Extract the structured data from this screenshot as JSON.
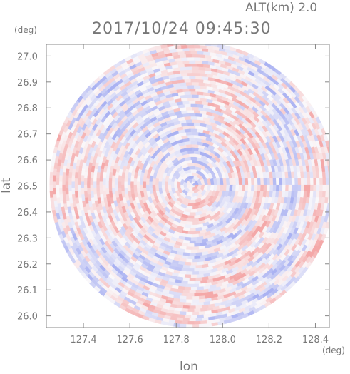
{
  "header": {
    "altitude_label": "ALT(km) 2.0",
    "timestamp": "2017/10/24 09:45:30"
  },
  "chart_data": {
    "type": "heatmap",
    "title": "2017/10/24 09:45:30",
    "xlabel": "lon",
    "ylabel": "lat",
    "x_unit": "(deg)",
    "y_unit": "(deg)",
    "xlim": [
      127.24,
      128.46
    ],
    "ylim": [
      25.955,
      27.045
    ],
    "x_ticks": [
      "127.4",
      "127.6",
      "127.8",
      "128.0",
      "128.2",
      "128.4"
    ],
    "y_ticks": [
      "26.0",
      "26.1",
      "26.2",
      "26.3",
      "26.4",
      "26.5",
      "26.6",
      "26.7",
      "26.8",
      "26.9",
      "27.0"
    ],
    "center": {
      "lon": 127.87,
      "lat": 26.505
    },
    "radius_deg_lat": 0.55,
    "field": "radial velocity pattern (diverging blue-white-red)",
    "colors": {
      "positive": "#f4a8a8",
      "negative": "#aab2f2",
      "frame": "#888888",
      "text": "#777777"
    }
  }
}
